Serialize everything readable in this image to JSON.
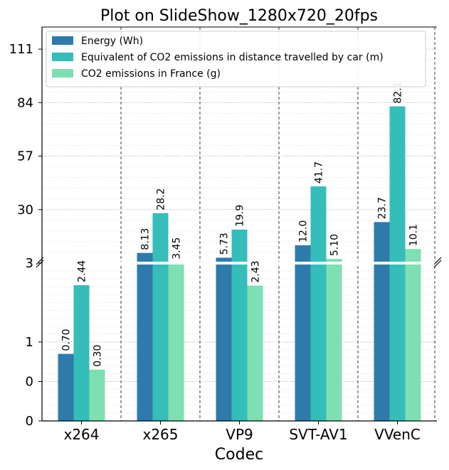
{
  "chart_data": {
    "type": "bar",
    "title": "Plot on SlideShow_1280x720_20fps",
    "xlabel": "Codec",
    "ylabel": "",
    "categories": [
      "x264",
      "x265",
      "VP9",
      "SVT-AV1",
      "VVenC"
    ],
    "series": [
      {
        "name": "Energy (Wh)",
        "color": "#2e7bab",
        "values": [
          0.7,
          8.13,
          5.73,
          12.0,
          23.7
        ],
        "labels": [
          "0.70",
          "8.13",
          "5.73",
          "12.0",
          "23.7"
        ]
      },
      {
        "name": "Equivalent of CO2 emissions in distance travelled by car (m)",
        "color": "#35bdb9",
        "values": [
          2.44,
          28.2,
          19.9,
          41.7,
          82.1
        ],
        "labels": [
          "2.44",
          "28.2",
          "19.9",
          "41.7",
          "82.1"
        ]
      },
      {
        "name": "CO2 emissions in France (g)",
        "color": "#7ddfb2",
        "values": [
          0.3,
          3.45,
          2.43,
          5.1,
          10.1
        ],
        "labels": [
          "0.30",
          "3.45",
          "2.43",
          "5.10",
          "10.1"
        ]
      }
    ],
    "axis_break": 3,
    "lower_ticks": [
      {
        "label": "0",
        "value": -1
      },
      {
        "label": "0",
        "value": 0
      },
      {
        "label": "1",
        "value": 1
      },
      {
        "label": "3",
        "value": 3
      }
    ],
    "upper_ticks": [
      3,
      30,
      57,
      84,
      111
    ],
    "lower_ylim": [
      -1,
      3
    ],
    "upper_ylim": [
      3,
      120
    ],
    "grid": true,
    "legend": "upper-left"
  }
}
